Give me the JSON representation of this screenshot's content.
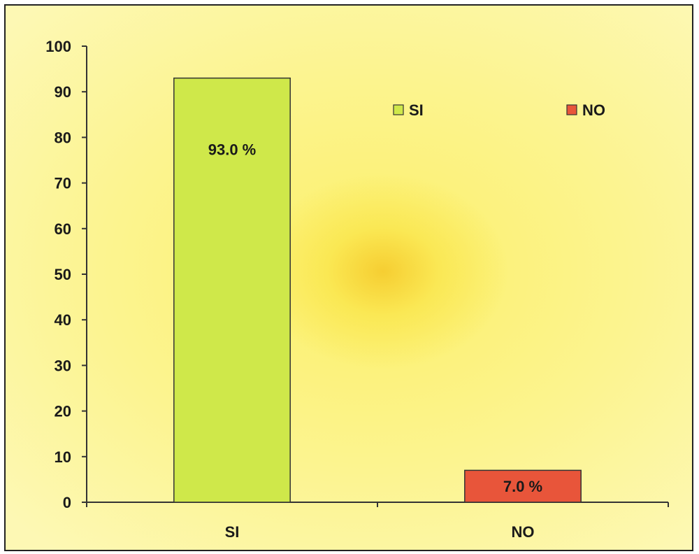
{
  "chart_data": {
    "type": "bar",
    "title": "",
    "xlabel": "",
    "ylabel": "",
    "categories": [
      "SI",
      "NO"
    ],
    "values": [
      93.0,
      7.0
    ],
    "data_labels": [
      "93.0 %",
      "7.0 %"
    ],
    "colors": [
      "#cfe84a",
      "#e8553a"
    ],
    "ylim": [
      0,
      100
    ],
    "yticks": [
      0,
      10,
      20,
      30,
      40,
      50,
      60,
      70,
      80,
      90,
      100
    ],
    "grid": false,
    "legend": {
      "placement": "top-right",
      "entries": [
        {
          "label": "SI",
          "color": "#cfe84a"
        },
        {
          "label": "NO",
          "color": "#e8553a"
        }
      ]
    }
  }
}
